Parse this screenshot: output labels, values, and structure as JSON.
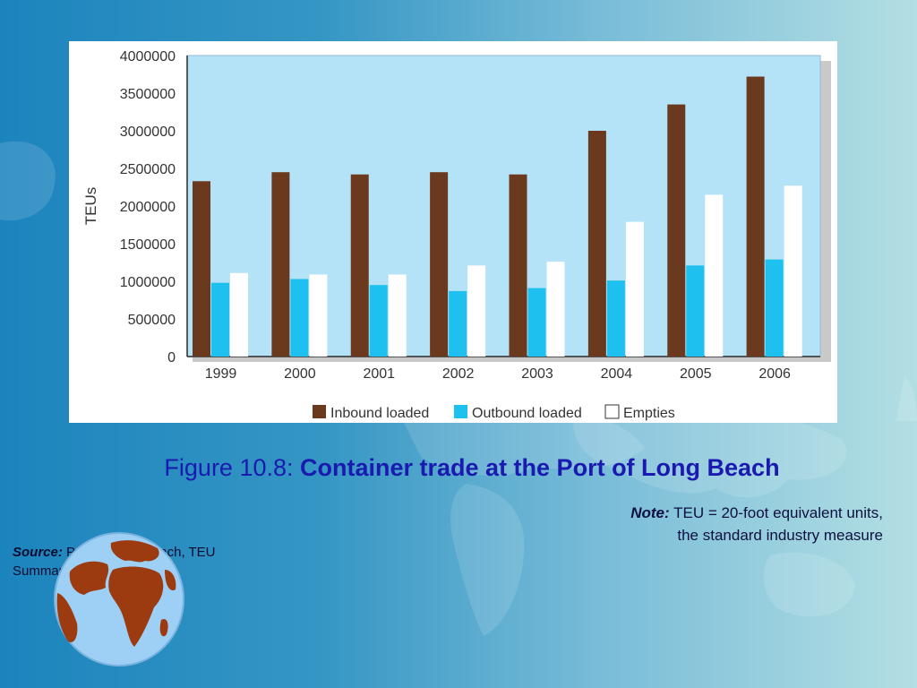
{
  "slide": {
    "figure_label": "Figure 10.8: ",
    "figure_title": "Container trade at the Port of Long Beach",
    "note_label": "Note:",
    "note_line1": " TEU = 20-foot equivalent units,",
    "note_line2": "the standard industry measure",
    "source_label": "Source:",
    "source_line1": " Port of Long Beach, TEU",
    "source_line2": "Summary, polb.com"
  },
  "colors": {
    "inbound": "#6b3a1e",
    "outbound": "#1ec0ef",
    "empties": "#ffffff",
    "plot_bg": "#b4e2f7",
    "caption": "#1a1ab0",
    "globe_land": "#9c3a10",
    "globe_sea": "#9ecff5"
  },
  "chart_data": {
    "type": "bar",
    "title": "",
    "xlabel": "",
    "ylabel": "TEUs",
    "ylim": [
      0,
      4000000
    ],
    "yticks": [
      "4000000",
      "3500000",
      "3000000",
      "2500000",
      "2000000",
      "1500000",
      "1000000",
      "500000",
      "0"
    ],
    "categories": [
      "1999",
      "2000",
      "2001",
      "2002",
      "2003",
      "2004",
      "2005",
      "2006"
    ],
    "series": [
      {
        "name": "Inbound loaded",
        "values": [
          2330000,
          2450000,
          2420000,
          2450000,
          2420000,
          3000000,
          3350000,
          3720000
        ]
      },
      {
        "name": "Outbound loaded",
        "values": [
          980000,
          1030000,
          950000,
          870000,
          910000,
          1010000,
          1210000,
          1290000
        ]
      },
      {
        "name": "Empties",
        "values": [
          1110000,
          1090000,
          1090000,
          1210000,
          1260000,
          1790000,
          2150000,
          2270000
        ]
      }
    ],
    "legend_position": "bottom",
    "grid": false
  }
}
